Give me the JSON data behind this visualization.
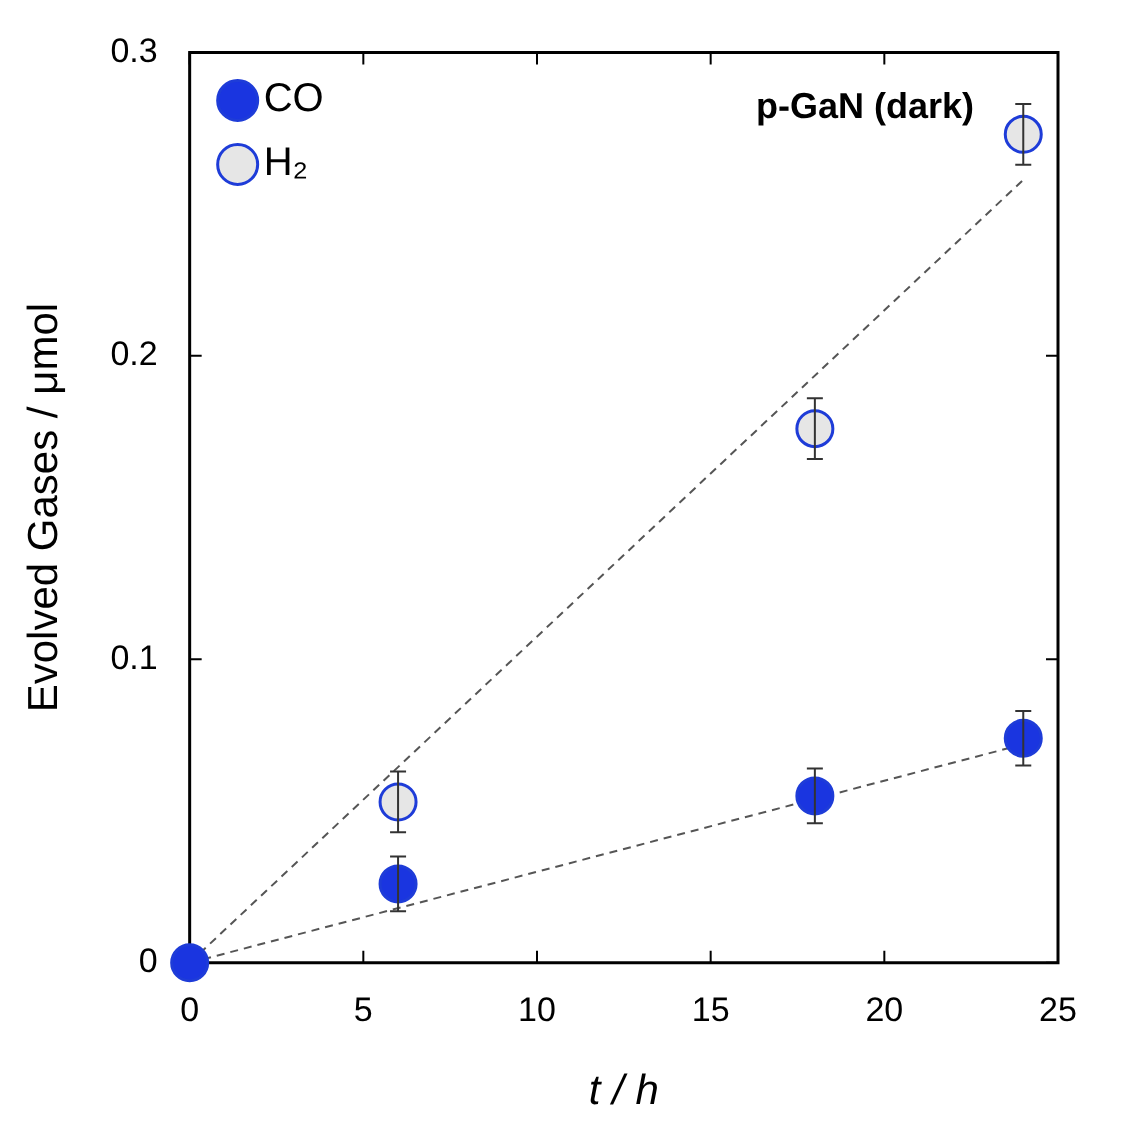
{
  "chart_data": {
    "type": "scatter",
    "xlabel": "t / h",
    "ylabel": "Evolved Gases / μmol",
    "annotations": [
      "p-GaN (dark)"
    ],
    "series": [
      {
        "name": "CO",
        "color": "#1a35e0",
        "x": [
          0,
          6,
          18,
          24
        ],
        "values": [
          0,
          0.026,
          0.055,
          0.074
        ],
        "errors": [
          null,
          0.009,
          0.009,
          0.009
        ]
      },
      {
        "name": "H₂",
        "color": "#e6e6e6",
        "x": [
          6,
          18,
          24
        ],
        "values": [
          0.053,
          0.176,
          0.273
        ],
        "errors": [
          0.01,
          0.01,
          0.01
        ]
      },
      {
        "type": "line",
        "color": "#555555",
        "x": [
          0,
          24
        ],
        "values": [
          0,
          0.072
        ],
        "marker": "none",
        "line_style": "dashed"
      },
      {
        "type": "line",
        "color": "#555555",
        "x": [
          0,
          24
        ],
        "values": [
          0,
          0.258
        ],
        "marker": "none",
        "line_style": "dashed"
      }
    ],
    "xlim": [
      0,
      25
    ],
    "xticks": [
      0,
      5,
      10,
      15,
      20,
      25
    ],
    "ylim": [
      0,
      0.3
    ],
    "yticks": [
      0,
      0.1,
      0.2,
      0.3
    ],
    "grid": false,
    "legend": "top left",
    "marker": "circle"
  }
}
